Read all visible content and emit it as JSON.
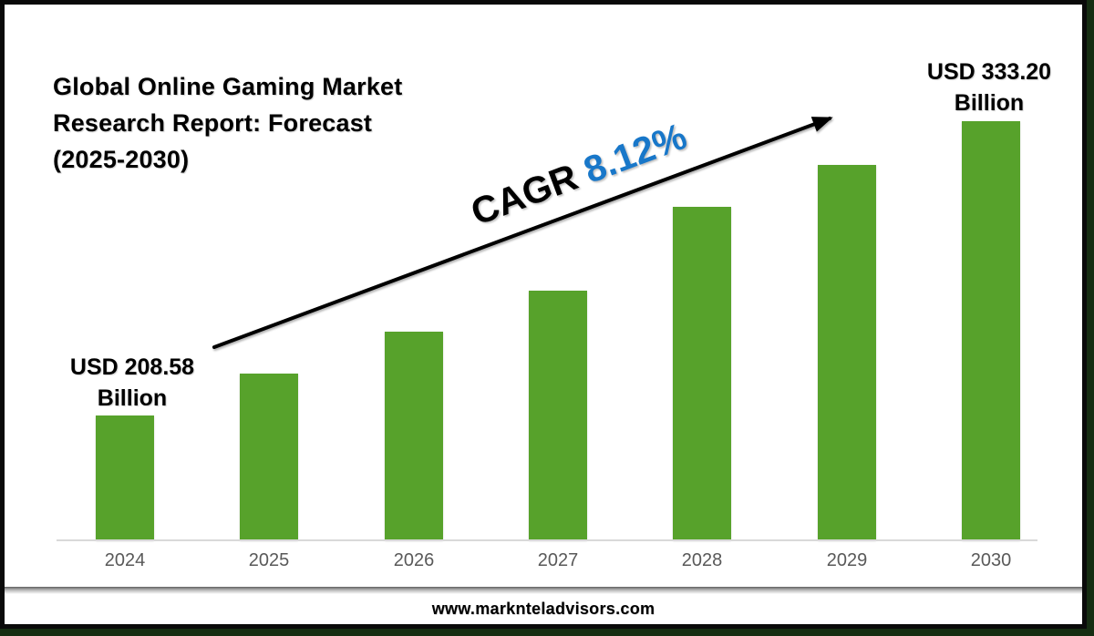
{
  "slide": {
    "title_lines": [
      "Global Online Gaming Market",
      "Research Report: Forecast",
      "(2025-2030)"
    ],
    "footer_url": "www.marknteladvisors.com"
  },
  "annotations": {
    "cagr_prefix": "CAGR ",
    "cagr_value": "8.12%",
    "first_bar_label_line1": "USD 208.58",
    "first_bar_label_line2": "Billion",
    "last_bar_label_line1": "USD 333.20",
    "last_bar_label_line2": "Billion"
  },
  "colors": {
    "bar_green": "#57A22B",
    "cagr_blue": "#1877C9",
    "axis_gray": "#D9D9D9",
    "tick_gray": "#595959",
    "arrow_black": "#000000"
  },
  "chart_data": {
    "type": "bar",
    "title": "Global Online Gaming Market Research Report: Forecast (2025-2030)",
    "categories": [
      "2024",
      "2025",
      "2026",
      "2027",
      "2028",
      "2029",
      "2030"
    ],
    "values": [
      208.58,
      226.3,
      244.1,
      261.4,
      296.9,
      314.7,
      333.2
    ],
    "unit": "USD Billion",
    "labeled_points": {
      "2024": "USD 208.58 Billion",
      "2030": "USD 333.20 Billion"
    },
    "cagr": "8.12%",
    "xlabel": "",
    "ylabel": "",
    "grid": false,
    "legend": false,
    "value_axis_visible": false
  }
}
